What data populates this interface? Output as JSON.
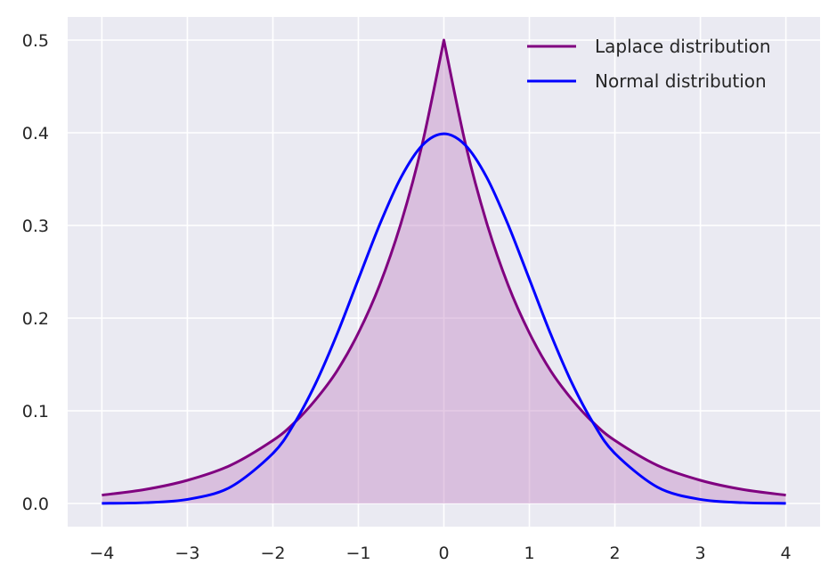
{
  "chart_data": {
    "type": "line",
    "title": "",
    "xlabel": "",
    "ylabel": "",
    "xlim": [
      -4.4,
      4.4
    ],
    "ylim": [
      -0.025,
      0.525
    ],
    "x_ticks": [
      -4,
      -3,
      -2,
      -1,
      0,
      1,
      2,
      3,
      4
    ],
    "x_tick_labels": [
      "−4",
      "−3",
      "−2",
      "−1",
      "0",
      "1",
      "2",
      "3",
      "4"
    ],
    "y_ticks": [
      0.0,
      0.1,
      0.2,
      0.3,
      0.4,
      0.5
    ],
    "y_tick_labels": [
      "0.0",
      "0.1",
      "0.2",
      "0.3",
      "0.4",
      "0.5"
    ],
    "grid": true,
    "legend_position": "top-right",
    "background_color": "#eaeaf2",
    "grid_color": "#ffffff",
    "series": [
      {
        "name": "Laplace distribution",
        "color": "#800080",
        "fill_color": "#c58cc5",
        "filled": true,
        "x": [
          -4.0,
          -3.5,
          -3.0,
          -2.5,
          -2.0,
          -1.75,
          -1.5,
          -1.25,
          -1.0,
          -0.75,
          -0.5,
          -0.25,
          0.0,
          0.25,
          0.5,
          0.75,
          1.0,
          1.25,
          1.5,
          1.75,
          2.0,
          2.5,
          3.0,
          3.5,
          4.0
        ],
        "y": [
          0.009,
          0.015,
          0.025,
          0.041,
          0.068,
          0.087,
          0.112,
          0.143,
          0.184,
          0.236,
          0.303,
          0.389,
          0.5,
          0.389,
          0.303,
          0.236,
          0.184,
          0.143,
          0.112,
          0.087,
          0.068,
          0.041,
          0.025,
          0.015,
          0.009
        ]
      },
      {
        "name": "Normal distribution",
        "color": "#0000ff",
        "filled": false,
        "x": [
          -4.0,
          -3.5,
          -3.0,
          -2.5,
          -2.0,
          -1.75,
          -1.5,
          -1.25,
          -1.0,
          -0.75,
          -0.5,
          -0.25,
          0.0,
          0.25,
          0.5,
          0.75,
          1.0,
          1.25,
          1.5,
          1.75,
          2.0,
          2.5,
          3.0,
          3.5,
          4.0
        ],
        "y": [
          0.0001,
          0.0009,
          0.0044,
          0.0175,
          0.054,
          0.0863,
          0.1295,
          0.1826,
          0.242,
          0.3011,
          0.3521,
          0.3867,
          0.3989,
          0.3867,
          0.3521,
          0.3011,
          0.242,
          0.1826,
          0.1295,
          0.0863,
          0.054,
          0.0175,
          0.0044,
          0.0009,
          0.0001
        ]
      }
    ]
  }
}
